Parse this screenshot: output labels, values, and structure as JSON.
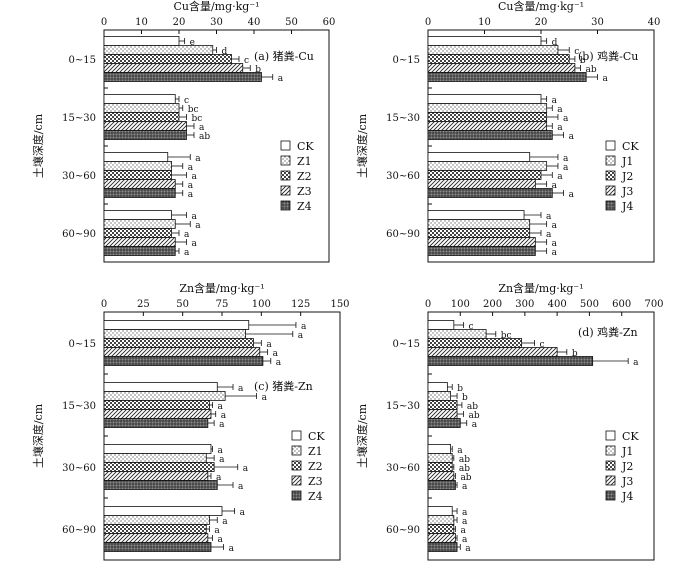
{
  "chart_data": [
    {
      "type": "bar",
      "orientation": "horizontal",
      "panel_label": "(a) 猪粪-Cu",
      "xlabel": "Cu含量/mg·kg⁻¹",
      "ylabel": "土壤深度/cm",
      "xlim": [
        0,
        60
      ],
      "xticks": [
        0,
        10,
        20,
        30,
        40,
        50,
        60
      ],
      "categories": [
        "0~15",
        "15~30",
        "30~60",
        "60~90"
      ],
      "series": [
        {
          "name": "CK",
          "values": [
            20,
            19,
            17,
            18
          ],
          "errors": [
            1.5,
            1,
            6,
            4
          ],
          "letters": [
            "e",
            "c",
            "a",
            "a"
          ]
        },
        {
          "name": "Z1",
          "values": [
            29,
            20,
            18,
            19
          ],
          "errors": [
            1,
            1,
            3,
            4
          ],
          "letters": [
            "d",
            "bc",
            "a",
            "a"
          ]
        },
        {
          "name": "Z2",
          "values": [
            34,
            20,
            18,
            18
          ],
          "errors": [
            2,
            2,
            4,
            2
          ],
          "letters": [
            "c",
            "bc",
            "a",
            "a"
          ]
        },
        {
          "name": "Z3",
          "values": [
            37,
            22,
            19,
            19
          ],
          "errors": [
            2,
            2,
            2,
            3
          ],
          "letters": [
            "b",
            "a",
            "a",
            "a"
          ]
        },
        {
          "name": "Z4",
          "values": [
            42,
            22,
            19,
            19
          ],
          "errors": [
            3,
            2,
            2,
            1
          ],
          "letters": [
            "a",
            "ab",
            "a",
            "a"
          ]
        }
      ],
      "legend": [
        "CK",
        "Z1",
        "Z2",
        "Z3",
        "Z4"
      ],
      "legend_position": "right"
    },
    {
      "type": "bar",
      "orientation": "horizontal",
      "panel_label": "(b) 鸡粪-Cu",
      "xlabel": "Cu含量/mg·kg⁻¹",
      "ylabel": "土壤深度/cm",
      "xlim": [
        0,
        40
      ],
      "xticks": [
        0,
        10,
        20,
        30,
        40
      ],
      "categories": [
        "0~15",
        "15~30",
        "30~60",
        "60~90"
      ],
      "series": [
        {
          "name": "CK",
          "values": [
            20,
            20,
            18,
            17
          ],
          "errors": [
            1,
            1,
            5,
            3
          ],
          "letters": [
            "d",
            "a",
            "a",
            "a"
          ]
        },
        {
          "name": "J1",
          "values": [
            23,
            21,
            21,
            18
          ],
          "errors": [
            2,
            1,
            2,
            3
          ],
          "letters": [
            "c",
            "a",
            "a",
            "a"
          ]
        },
        {
          "name": "J2",
          "values": [
            25,
            21,
            20,
            18
          ],
          "errors": [
            1,
            2,
            2,
            2
          ],
          "letters": [
            "b",
            "a",
            "a",
            "a"
          ]
        },
        {
          "name": "J3",
          "values": [
            26,
            21,
            19,
            19
          ],
          "errors": [
            1,
            1,
            2,
            2
          ],
          "letters": [
            "ab",
            "a",
            "a",
            "a"
          ]
        },
        {
          "name": "J4",
          "values": [
            28,
            22,
            22,
            19
          ],
          "errors": [
            2,
            2,
            2,
            2
          ],
          "letters": [
            "a",
            "a",
            "a",
            "a"
          ]
        }
      ],
      "legend": [
        "CK",
        "J1",
        "J2",
        "J3",
        "J4"
      ],
      "legend_position": "right"
    },
    {
      "type": "bar",
      "orientation": "horizontal",
      "panel_label": "(c) 猪粪-Zn",
      "xlabel": "Zn含量/mg·kg⁻¹",
      "ylabel": "土壤深度/cm",
      "xlim": [
        0,
        150
      ],
      "xticks": [
        0,
        25,
        50,
        75,
        100,
        125,
        150
      ],
      "categories": [
        "0~15",
        "15~30",
        "30~60",
        "60~90"
      ],
      "series": [
        {
          "name": "CK",
          "values": [
            92,
            72,
            68,
            75
          ],
          "errors": [
            30,
            10,
            1,
            8
          ],
          "letters": [
            "a",
            "a",
            "a",
            "a"
          ]
        },
        {
          "name": "Z1",
          "values": [
            90,
            77,
            65,
            67
          ],
          "errors": [
            30,
            20,
            5,
            5
          ],
          "letters": [
            "a",
            "a",
            "a",
            "a"
          ]
        },
        {
          "name": "Z2",
          "values": [
            95,
            67,
            70,
            65
          ],
          "errors": [
            5,
            2,
            15,
            2
          ],
          "letters": [
            "a",
            "a",
            "a",
            "a"
          ]
        },
        {
          "name": "Z3",
          "values": [
            99,
            68,
            66,
            66
          ],
          "errors": [
            5,
            3,
            2,
            3
          ],
          "letters": [
            "a",
            "a",
            "a",
            "a"
          ]
        },
        {
          "name": "Z4",
          "values": [
            101,
            66,
            72,
            68
          ],
          "errors": [
            5,
            4,
            10,
            8
          ],
          "letters": [
            "a",
            "a",
            "a",
            "a"
          ]
        }
      ],
      "legend": [
        "CK",
        "Z1",
        "Z2",
        "Z3",
        "Z4"
      ],
      "legend_position": "right"
    },
    {
      "type": "bar",
      "orientation": "horizontal",
      "panel_label": "(d) 鸡粪-Zn",
      "xlabel": "Zn含量/mg·kg⁻¹",
      "ylabel": "土壤深度/cm",
      "xlim": [
        0,
        700
      ],
      "xticks": [
        0,
        100,
        200,
        300,
        400,
        500,
        600,
        700
      ],
      "categories": [
        "0~15",
        "15~30",
        "30~60",
        "60~90"
      ],
      "series": [
        {
          "name": "CK",
          "values": [
            80,
            60,
            70,
            75
          ],
          "errors": [
            30,
            15,
            5,
            15
          ],
          "letters": [
            "c",
            "b",
            "a",
            "a"
          ]
        },
        {
          "name": "J1",
          "values": [
            180,
            70,
            75,
            80
          ],
          "errors": [
            30,
            20,
            5,
            10
          ],
          "letters": [
            "bc",
            "b",
            "ab",
            "a"
          ]
        },
        {
          "name": "J2",
          "values": [
            290,
            90,
            75,
            80
          ],
          "errors": [
            40,
            15,
            5,
            5
          ],
          "letters": [
            "c",
            "ab",
            "ab",
            "a"
          ]
        },
        {
          "name": "J3",
          "values": [
            400,
            90,
            80,
            85
          ],
          "errors": [
            30,
            20,
            5,
            5
          ],
          "letters": [
            "b",
            "ab",
            "ab",
            "a"
          ]
        },
        {
          "name": "J4",
          "values": [
            510,
            100,
            85,
            90
          ],
          "errors": [
            110,
            20,
            5,
            10
          ],
          "letters": [
            "a",
            "a",
            "a",
            "a"
          ]
        }
      ],
      "legend": [
        "CK",
        "J1",
        "J2",
        "J3",
        "J4"
      ],
      "legend_position": "right"
    }
  ]
}
